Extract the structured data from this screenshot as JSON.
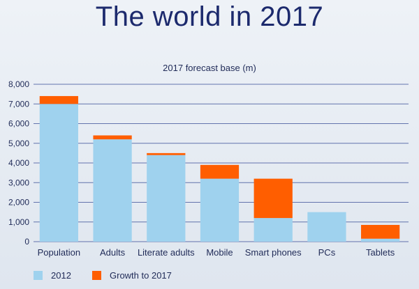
{
  "title": "The world in 2017",
  "chart_data": {
    "type": "bar",
    "stacked": true,
    "title": "The world in 2017",
    "subtitle": "2017 forecast base (m)",
    "xlabel": "",
    "ylabel": "",
    "categories": [
      "Population",
      "Adults",
      "Literate adults",
      "Mobile",
      "Smart phones",
      "PCs",
      "Tablets"
    ],
    "series": [
      {
        "name": "2012",
        "color": "#9fd2ee",
        "values": [
          7000,
          5200,
          4400,
          3200,
          1200,
          1500,
          150
        ]
      },
      {
        "name": "Growth to 2017",
        "color": "#ff5e00",
        "values": [
          400,
          200,
          100,
          700,
          2000,
          0,
          700
        ]
      }
    ],
    "ylim": [
      0,
      8000
    ],
    "yticks": [
      0,
      1000,
      2000,
      3000,
      4000,
      5000,
      6000,
      7000,
      8000
    ],
    "ytick_labels": [
      "0",
      "1,000",
      "2,000",
      "3,000",
      "4,000",
      "5,000",
      "6,000",
      "7,000",
      "8,000"
    ],
    "grid": true,
    "legend_position": "bottom-left"
  }
}
